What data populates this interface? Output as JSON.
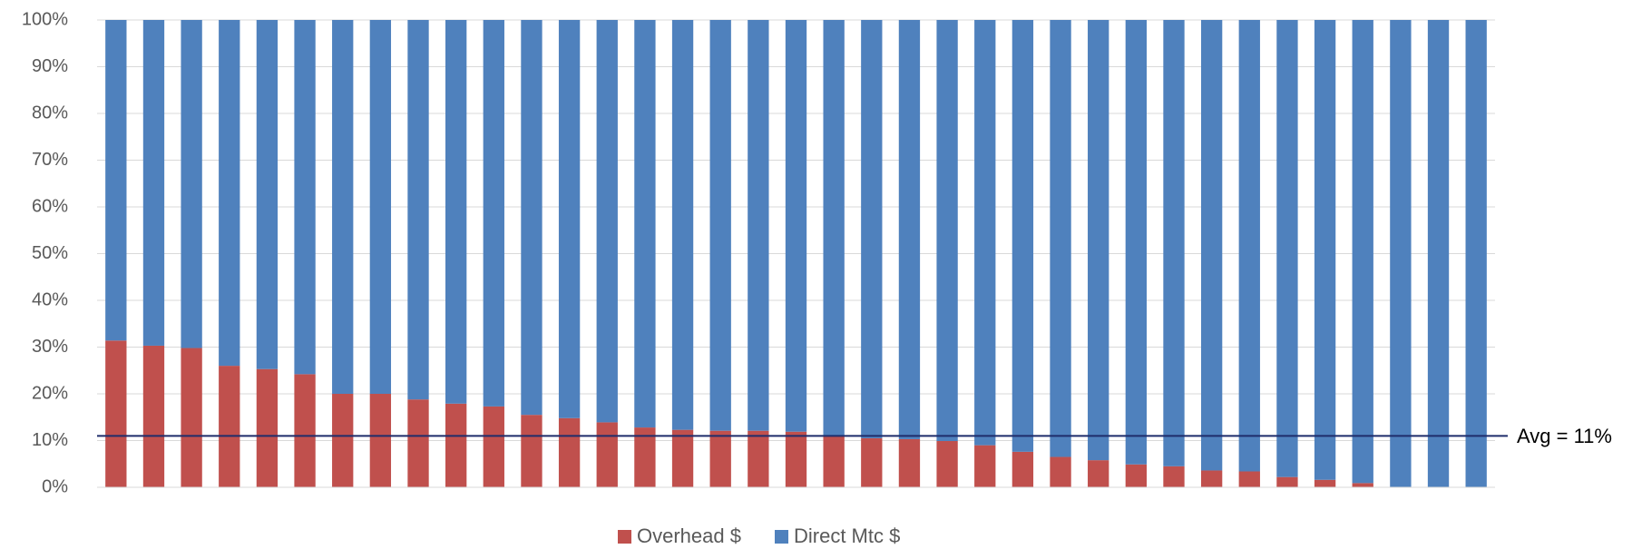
{
  "chart_data": {
    "type": "stacked_bar",
    "categories": [
      null,
      null,
      null,
      null,
      null,
      null,
      null,
      null,
      null,
      null,
      null,
      null,
      null,
      null,
      null,
      null,
      null,
      null,
      null,
      null,
      null,
      null,
      null,
      null,
      null,
      null,
      null,
      null,
      null,
      null,
      null,
      null,
      null,
      null,
      null,
      null,
      null
    ],
    "series": [
      {
        "name": "Overhead $",
        "color": "#c0504d",
        "values": [
          31.4,
          30.3,
          29.8,
          26,
          25.3,
          24.2,
          20,
          20,
          18.8,
          17.9,
          17.3,
          15.5,
          14.8,
          13.9,
          12.8,
          12.3,
          12.1,
          12.1,
          11.9,
          11,
          10.5,
          10.3,
          9.9,
          9,
          7.6,
          6.5,
          5.8,
          4.9,
          4.5,
          3.6,
          3.4,
          2.2,
          1.6,
          0.9,
          0,
          0,
          0
        ]
      },
      {
        "name": "Direct Mtc $",
        "color": "#4f81bd",
        "values": [
          68.6,
          69.7,
          70.2,
          74,
          74.7,
          75.8,
          80,
          80,
          81.2,
          82.1,
          82.7,
          84.5,
          85.2,
          86.1,
          87.2,
          87.7,
          87.9,
          87.9,
          88.1,
          89,
          89.5,
          89.7,
          90.1,
          91,
          92.4,
          93.5,
          94.2,
          95.1,
          95.5,
          96.4,
          96.6,
          97.8,
          98.4,
          99.1,
          100,
          100,
          100
        ]
      }
    ],
    "ylim": [
      0,
      100
    ],
    "yticks": [
      {
        "value": 0,
        "label": "0%"
      },
      {
        "value": 10,
        "label": "10%"
      },
      {
        "value": 20,
        "label": "20%"
      },
      {
        "value": 30,
        "label": "30%"
      },
      {
        "value": 40,
        "label": "40%"
      },
      {
        "value": 50,
        "label": "50%"
      },
      {
        "value": 60,
        "label": "60%"
      },
      {
        "value": 70,
        "label": "70%"
      },
      {
        "value": 80,
        "label": "80%"
      },
      {
        "value": 90,
        "label": "90%"
      },
      {
        "value": 100,
        "label": "100%"
      }
    ],
    "grid": true,
    "legend": "bottom",
    "avg_line": {
      "value": 11,
      "label": "Avg = 11%",
      "color": "#1f2d6b"
    }
  }
}
